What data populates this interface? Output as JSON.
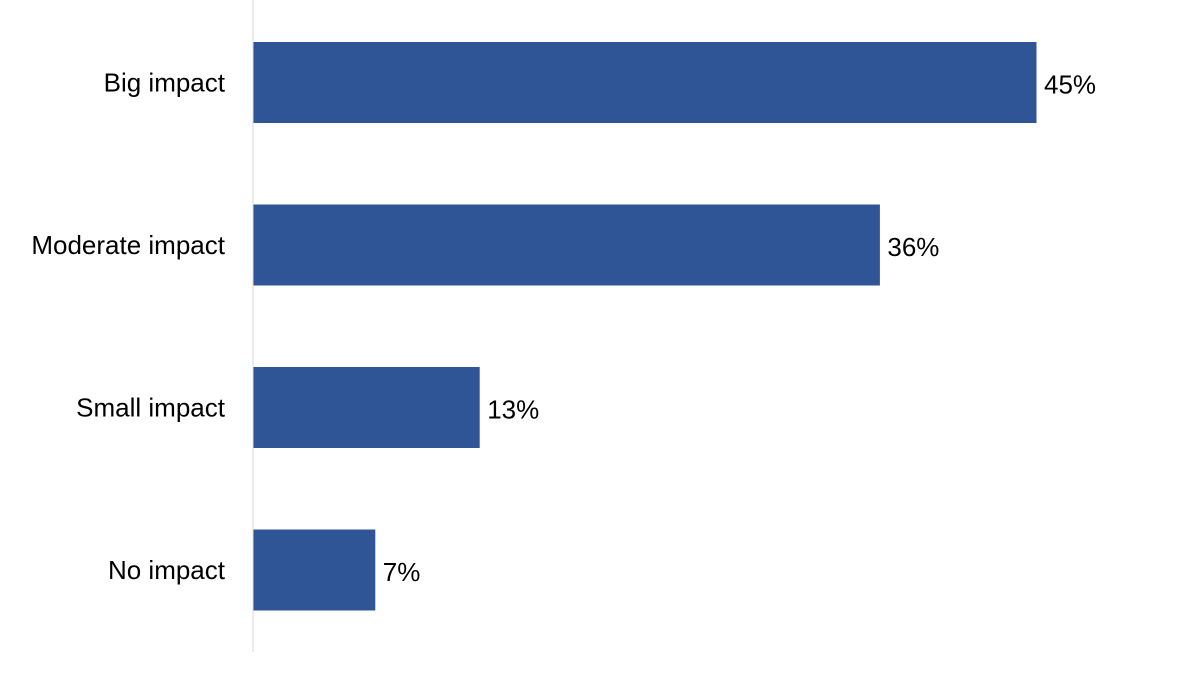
{
  "chart_data": {
    "type": "bar",
    "orientation": "horizontal",
    "categories": [
      "Big impact",
      "Moderate impact",
      "Small impact",
      "No impact"
    ],
    "values": [
      45,
      36,
      13,
      7
    ],
    "value_labels": [
      "45%",
      "36%",
      "13%",
      "7%"
    ],
    "title": "",
    "xlabel": "",
    "ylabel": "",
    "xlim": [
      0,
      50
    ],
    "grid": false,
    "legend": "none",
    "colors": {
      "bar": "#2f5597",
      "axis_line": "#d9d9d9",
      "text": "#000000"
    }
  }
}
